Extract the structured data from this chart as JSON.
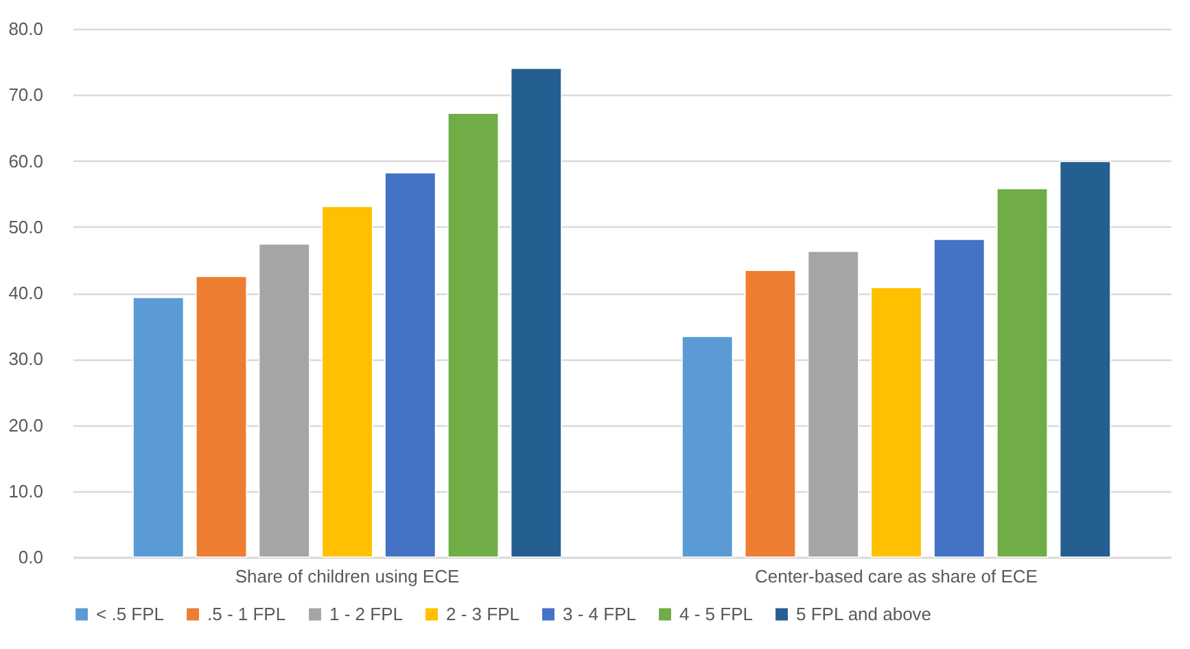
{
  "chart_data": {
    "type": "bar",
    "categories": [
      "Share of children using ECE",
      "Center-based care as share of ECE"
    ],
    "series": [
      {
        "name": "< .5 FPL",
        "color": "#5b9bd5",
        "values": [
          39.3,
          33.4
        ]
      },
      {
        "name": ".5 - 1 FPL",
        "color": "#ed7d31",
        "values": [
          42.5,
          43.4
        ]
      },
      {
        "name": "1 - 2 FPL",
        "color": "#a5a5a5",
        "values": [
          47.4,
          46.3
        ]
      },
      {
        "name": "2 - 3 FPL",
        "color": "#ffc000",
        "values": [
          53.1,
          40.8
        ]
      },
      {
        "name": "3 - 4 FPL",
        "color": "#4472c4",
        "values": [
          58.2,
          48.1
        ]
      },
      {
        "name": "4 - 5 FPL",
        "color": "#70ad47",
        "values": [
          67.2,
          55.8
        ]
      },
      {
        "name": "5 FPL  and above",
        "color": "#255e91",
        "values": [
          74.0,
          59.9
        ]
      }
    ],
    "ylim": [
      0,
      80
    ],
    "yticks": [
      {
        "value": 0,
        "label": "0.0"
      },
      {
        "value": 10,
        "label": "10.0"
      },
      {
        "value": 20,
        "label": "20.0"
      },
      {
        "value": 30,
        "label": "30.0"
      },
      {
        "value": 40,
        "label": "40.0"
      },
      {
        "value": 50,
        "label": "50.0"
      },
      {
        "value": 60,
        "label": "60.0"
      },
      {
        "value": 70,
        "label": "70.0"
      },
      {
        "value": 80,
        "label": "80.0"
      }
    ],
    "grid": true,
    "legend": "bottom"
  }
}
